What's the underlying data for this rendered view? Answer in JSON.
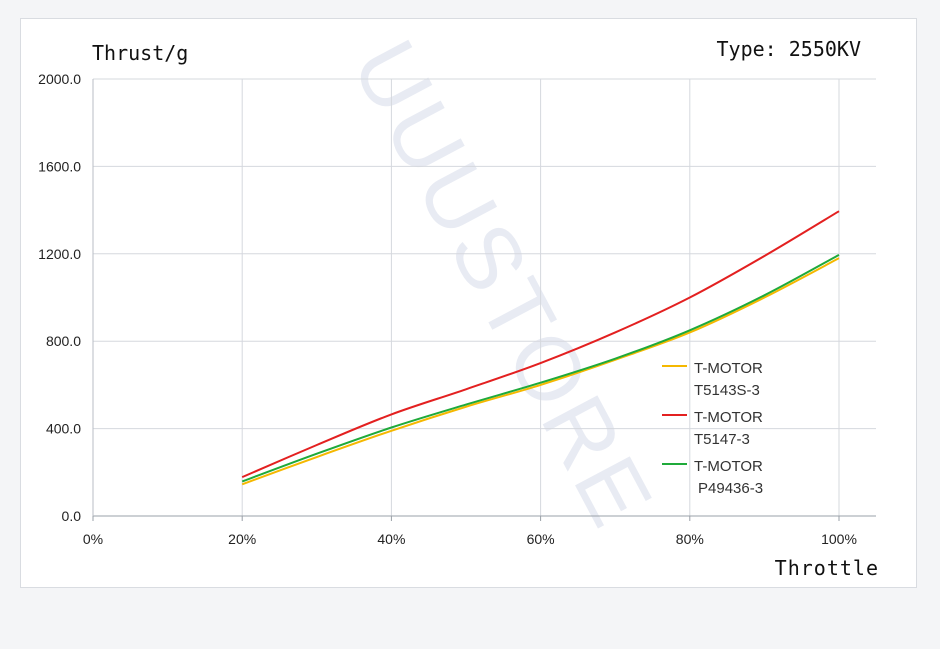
{
  "chart_data": {
    "type": "line",
    "title": "Type: 2550KV",
    "ylabel": "Thrust/g",
    "xlabel": "Throttle",
    "xlim": [
      0,
      100
    ],
    "ylim": [
      0,
      2000
    ],
    "x_ticks": [
      0,
      20,
      40,
      60,
      80,
      100
    ],
    "x_tick_labels": [
      "0%",
      "20%",
      "40%",
      "60%",
      "80%",
      "100%"
    ],
    "y_ticks": [
      0,
      400,
      800,
      1200,
      1600,
      2000
    ],
    "y_tick_labels": [
      "0.0",
      "400.0",
      "800.0",
      "1200.0",
      "1600.0",
      "2000.0"
    ],
    "grid": true,
    "legend_position": "right",
    "watermark": "UUUSTORE",
    "series": [
      {
        "name_lines": [
          "T-MOTOR",
          "T5143S-3"
        ],
        "color": "#f5b800",
        "x": [
          20,
          30,
          40,
          50,
          60,
          70,
          80,
          90,
          100
        ],
        "y": [
          145,
          270,
          390,
          500,
          600,
          715,
          840,
          1000,
          1180
        ]
      },
      {
        "name_lines": [
          "T-MOTOR",
          "T5147-3"
        ],
        "color": "#e32020",
        "x": [
          20,
          30,
          40,
          50,
          60,
          70,
          80,
          90,
          100
        ],
        "y": [
          178,
          325,
          465,
          580,
          700,
          840,
          1000,
          1190,
          1395
        ]
      },
      {
        "name_lines": [
          "T-MOTOR",
          "P49436-3"
        ],
        "color": "#1faa3a",
        "x": [
          20,
          30,
          40,
          50,
          60,
          70,
          80,
          90,
          100
        ],
        "y": [
          158,
          285,
          405,
          510,
          610,
          720,
          850,
          1010,
          1195
        ]
      }
    ]
  }
}
